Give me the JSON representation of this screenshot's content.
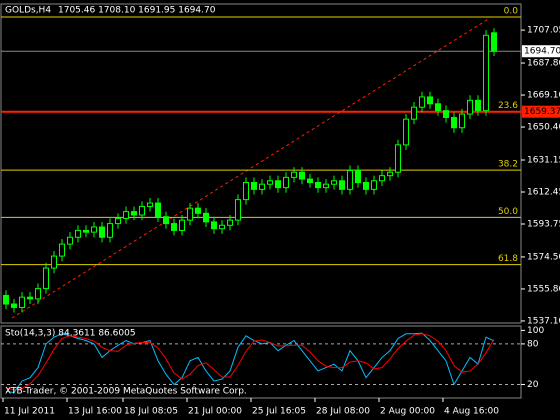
{
  "chart_data": [
    {
      "type": "candlestick",
      "title": "GOLDs,H4",
      "subtitle": "1705.46 1708.10 1691.95 1694.70",
      "categories": [
        "11 Jul 2011",
        null,
        null,
        null,
        null,
        null,
        null,
        null,
        "13 Jul 16:00",
        null,
        null,
        null,
        null,
        null,
        null,
        "18 Jul 08:05",
        null,
        null,
        null,
        null,
        null,
        null,
        null,
        "21 Jul 00:00",
        null,
        null,
        null,
        null,
        null,
        null,
        null,
        "25 Jul 16:05",
        null,
        null,
        null,
        null,
        null,
        null,
        null,
        "28 Jul 08:00",
        null,
        null,
        null,
        null,
        null,
        null,
        null,
        "2 Aug 00:00",
        null,
        null,
        null,
        null,
        null,
        null,
        null,
        "4 Aug 16:00",
        null,
        null,
        null,
        null,
        null,
        null
      ],
      "open": [
        1552,
        1547,
        1545,
        1551,
        1550,
        1556,
        1568,
        1575,
        1582,
        1586,
        1590,
        1589,
        1592,
        1586,
        1594,
        1597,
        1601,
        1599,
        1604,
        1606,
        1598,
        1594,
        1590,
        1596,
        1603,
        1600,
        1595,
        1591,
        1593,
        1596,
        1608,
        1618,
        1614,
        1617,
        1619,
        1615,
        1621,
        1624,
        1620,
        1618,
        1615,
        1617,
        1619,
        1614,
        1625,
        1618,
        1614,
        1619,
        1622,
        1624,
        1640,
        1655,
        1662,
        1668,
        1664,
        1660,
        1656,
        1650,
        1658,
        1666,
        1660,
        1705.46
      ],
      "high": [
        1555,
        1550,
        1554,
        1554,
        1559,
        1571,
        1578,
        1585,
        1589,
        1593,
        1593,
        1595,
        1595,
        1597,
        1600,
        1604,
        1604,
        1607,
        1609,
        1609,
        1601,
        1597,
        1599,
        1606,
        1606,
        1603,
        1598,
        1596,
        1599,
        1611,
        1621,
        1621,
        1620,
        1622,
        1622,
        1624,
        1627,
        1627,
        1623,
        1621,
        1620,
        1622,
        1622,
        1628,
        1628,
        1621,
        1622,
        1625,
        1627,
        1643,
        1658,
        1665,
        1671,
        1671,
        1667,
        1663,
        1659,
        1661,
        1669,
        1669,
        1707,
        1708.1
      ],
      "low": [
        1544,
        1542,
        1542,
        1547,
        1547,
        1553,
        1565,
        1572,
        1579,
        1583,
        1586,
        1586,
        1583,
        1583,
        1591,
        1594,
        1596,
        1596,
        1601,
        1595,
        1591,
        1587,
        1587,
        1593,
        1597,
        1592,
        1588,
        1588,
        1590,
        1593,
        1605,
        1611,
        1611,
        1614,
        1612,
        1612,
        1618,
        1617,
        1615,
        1612,
        1612,
        1614,
        1611,
        1611,
        1615,
        1611,
        1611,
        1616,
        1619,
        1621,
        1637,
        1652,
        1659,
        1661,
        1657,
        1653,
        1647,
        1647,
        1655,
        1657,
        1657,
        1691.95
      ],
      "close": [
        1547,
        1545,
        1551,
        1550,
        1556,
        1568,
        1575,
        1582,
        1586,
        1590,
        1589,
        1592,
        1586,
        1594,
        1597,
        1601,
        1599,
        1604,
        1606,
        1598,
        1594,
        1590,
        1596,
        1603,
        1600,
        1595,
        1591,
        1593,
        1596,
        1608,
        1618,
        1614,
        1617,
        1619,
        1615,
        1621,
        1624,
        1620,
        1618,
        1615,
        1617,
        1619,
        1614,
        1625,
        1618,
        1614,
        1619,
        1622,
        1624,
        1640,
        1655,
        1662,
        1668,
        1664,
        1660,
        1656,
        1650,
        1658,
        1666,
        1660,
        1704,
        1694.7
      ],
      "color": "#00ff00",
      "ylim": [
        1535.9,
        1722.3
      ],
      "yticks": [
        1707.05,
        {
          "value": 1687.8,
          "label": "1687.80"
        },
        {
          "value": 1669.1,
          "label": "1669.10"
        },
        {
          "value": 1650.4,
          "label": "1650.40"
        },
        1631.15,
        1612.45,
        1593.75,
        {
          "value": 1574.5,
          "label": "1574.50"
        },
        {
          "value": 1555.8,
          "label": "1555.80"
        },
        {
          "value": 1537.1,
          "label": "1537.10"
        }
      ],
      "levels": [
        {
          "name": "0.0",
          "value": 1714.7
        },
        {
          "name": "23.6",
          "value": 1659.37
        },
        {
          "name": "38.2",
          "value": 1625.2
        },
        {
          "name": "50.0",
          "value": 1597.6
        },
        {
          "name": "61.8",
          "value": 1570.0
        }
      ],
      "level_color": "#e0d000",
      "price_line": {
        "value": 1659.37,
        "color": "#ff2000"
      },
      "current_price": {
        "value": 1694.7,
        "label": "1694.70"
      }
    },
    {
      "type": "line",
      "title": "Sto(14,3,3) 84.3611 86.6005",
      "series": [
        {
          "color": "#00bfff",
          "values": [
            10,
            8,
            25,
            30,
            45,
            80,
            90,
            95,
            92,
            88,
            85,
            80,
            60,
            70,
            78,
            85,
            80,
            82,
            85,
            55,
            35,
            20,
            30,
            55,
            60,
            40,
            25,
            28,
            40,
            75,
            92,
            85,
            80,
            82,
            70,
            78,
            85,
            70,
            55,
            40,
            45,
            50,
            40,
            70,
            55,
            30,
            45,
            60,
            70,
            88,
            95,
            95,
            96,
            85,
            70,
            55,
            20,
            40,
            60,
            50,
            90,
            84.3611
          ]
        },
        {
          "color": "#ff0000",
          "values": [
            15,
            12,
            14,
            21,
            33,
            52,
            72,
            88,
            92,
            90,
            88,
            84,
            75,
            70,
            69,
            78,
            81,
            82,
            82,
            74,
            58,
            37,
            28,
            35,
            48,
            52,
            42,
            31,
            31,
            48,
            69,
            84,
            86,
            82,
            77,
            77,
            78,
            78,
            68,
            55,
            47,
            45,
            45,
            53,
            55,
            52,
            43,
            45,
            58,
            73,
            84,
            93,
            95,
            92,
            84,
            70,
            48,
            38,
            40,
            50,
            67,
            86.6005
          ]
        }
      ],
      "ylim": [
        0,
        105
      ],
      "yticks": [
        100,
        80,
        20
      ],
      "levels": [
        80,
        20
      ]
    }
  ],
  "footer": "XTB-Trader, © 2001-2009 MetaQuotes Software Corp."
}
